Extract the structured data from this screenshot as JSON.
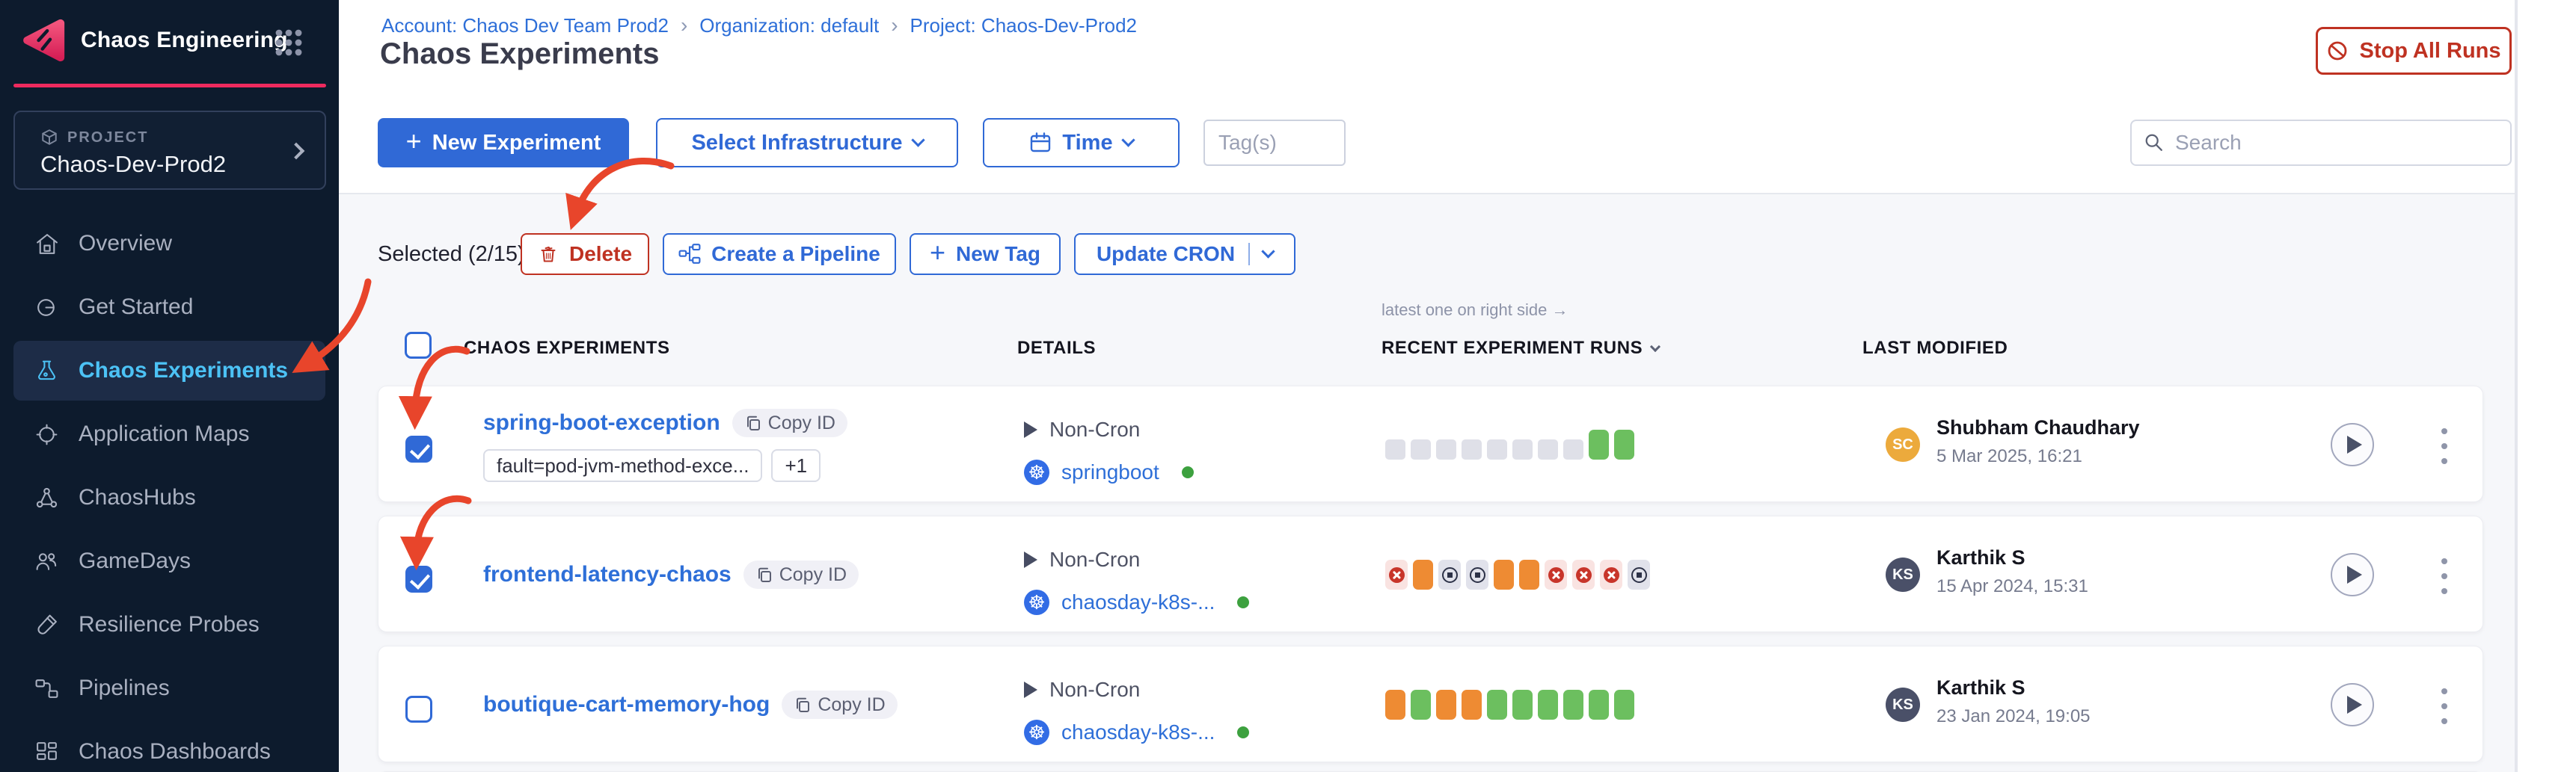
{
  "theme": {
    "accent_blue": "#3069d6",
    "link_blue": "#2e6fd8",
    "danger_red": "#bf3222",
    "annotation_red": "#e8452b",
    "sidebar_bg": "#0d1b2d",
    "sidebar_active_text": "#4cc2f5",
    "pink_accent": "#ee2a5e",
    "content_bg": "#f6f7fa",
    "fail_glyph": "#c8352a",
    "terminated_glyph": "#2c3147"
  },
  "glyphs": {
    "plus": "+",
    "k8s": "☸"
  },
  "brand": {
    "name": "Chaos Engineering"
  },
  "sidebar": {
    "project_label": "PROJECT",
    "project_name": "Chaos-Dev-Prod2",
    "items": [
      {
        "label": "Overview",
        "icon": "home-icon",
        "active": false
      },
      {
        "label": "Get Started",
        "icon": "get-started-icon",
        "active": false
      },
      {
        "label": "Chaos Experiments",
        "icon": "flask-icon",
        "active": true
      },
      {
        "label": "Application Maps",
        "icon": "application-maps-icon",
        "active": false
      },
      {
        "label": "ChaosHubs",
        "icon": "chaoshubs-icon",
        "active": false
      },
      {
        "label": "GameDays",
        "icon": "gamedays-icon",
        "active": false
      },
      {
        "label": "Resilience Probes",
        "icon": "resilience-probes-icon",
        "active": false
      },
      {
        "label": "Pipelines",
        "icon": "pipelines-icon",
        "active": false
      },
      {
        "label": "Chaos Dashboards",
        "icon": "dashboards-icon",
        "active": false
      }
    ]
  },
  "header": {
    "breadcrumb": [
      "Account: Chaos Dev Team Prod2",
      "Organization: default",
      "Project: Chaos-Dev-Prod2"
    ],
    "breadcrumb_separator": "›",
    "title": "Chaos Experiments",
    "stop_all_runs_label": "Stop All Runs"
  },
  "toolbar": {
    "new_experiment_label": "New Experiment",
    "select_infrastructure_label": "Select Infrastructure",
    "time_label": "Time",
    "tags_placeholder": "Tag(s)",
    "search_placeholder": "Search"
  },
  "selection_bar": {
    "selected_text": "Selected (2/15)",
    "delete_label": "Delete",
    "create_pipeline_label": "Create a Pipeline",
    "new_tag_label": "New Tag",
    "update_cron_label": "Update CRON"
  },
  "table": {
    "runs_note": "latest one on right side →",
    "columns": [
      "CHAOS EXPERIMENTS",
      "DETAILS",
      "RECENT EXPERIMENT RUNS",
      "LAST MODIFIED"
    ],
    "header_checkbox_checked": false,
    "run_colors": {
      "none": "#dfe0e8",
      "completed": "#6cbf5f",
      "stopped": "#ee8b33",
      "failed": "#f9e3e1",
      "terminated": "#e1e2eb"
    },
    "rows": [
      {
        "name": "spring-boot-exception",
        "copy_label": "Copy ID",
        "checked": true,
        "tags": [
          "fault=pod-jvm-method-exce...",
          "+1"
        ],
        "cron": "Non-Cron",
        "infra": "springboot",
        "infra_status_color": "#3da13f",
        "runs": [
          "none",
          "none",
          "none",
          "none",
          "none",
          "none",
          "none",
          "none",
          "completed",
          "completed"
        ],
        "modified_by": {
          "initials": "SC",
          "color": "#ecaa3c",
          "name": "Shubham Chaudhary",
          "date": "5 Mar 2025, 16:21"
        }
      },
      {
        "name": "frontend-latency-chaos",
        "copy_label": "Copy ID",
        "checked": true,
        "tags": [],
        "cron": "Non-Cron",
        "infra": "chaosday-k8s-...",
        "infra_status_color": "#3da13f",
        "runs": [
          "failed",
          "stopped",
          "terminated",
          "terminated",
          "stopped",
          "stopped",
          "failed",
          "failed",
          "failed",
          "terminated"
        ],
        "modified_by": {
          "initials": "KS",
          "color": "#4a5068",
          "name": "Karthik S",
          "date": "15 Apr 2024, 15:31"
        }
      },
      {
        "name": "boutique-cart-memory-hog",
        "copy_label": "Copy ID",
        "checked": false,
        "tags": [],
        "cron": "Non-Cron",
        "infra": "chaosday-k8s-...",
        "infra_status_color": "#3da13f",
        "runs": [
          "stopped",
          "completed",
          "stopped",
          "stopped",
          "completed",
          "completed",
          "completed",
          "completed",
          "completed",
          "completed"
        ],
        "modified_by": {
          "initials": "KS",
          "color": "#4a5068",
          "name": "Karthik S",
          "date": "23 Jan 2024, 19:05"
        }
      }
    ]
  }
}
